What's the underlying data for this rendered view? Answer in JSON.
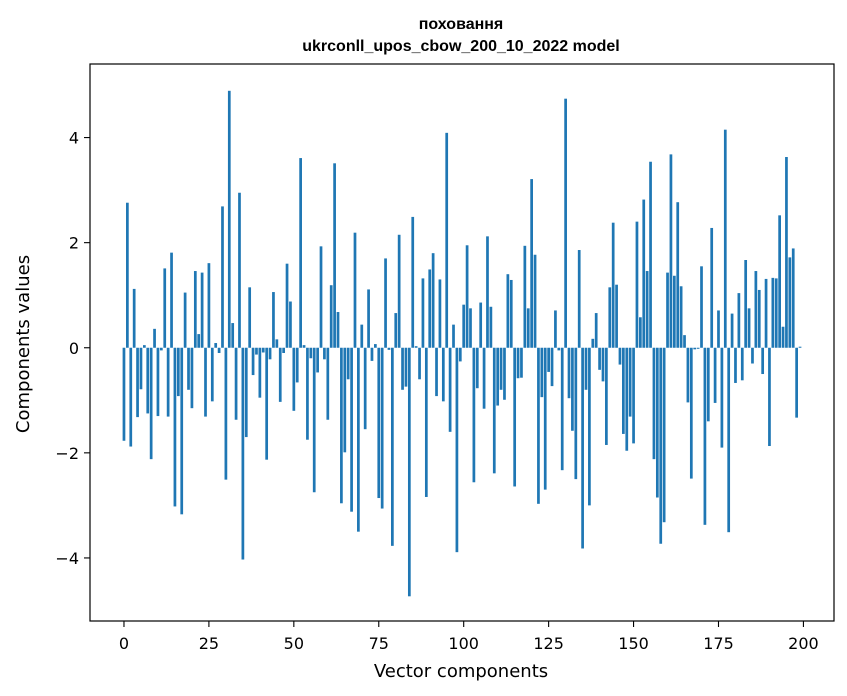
{
  "chart_data": {
    "type": "bar",
    "title": [
      "поховання",
      "ukrconll_upos_cbow_200_10_2022 model"
    ],
    "xlabel": "Vector components",
    "ylabel": "Components values",
    "xlim": [
      -10,
      209
    ],
    "ylim": [
      -5.2,
      5.4
    ],
    "xticks": [
      0,
      25,
      50,
      75,
      100,
      125,
      150,
      175,
      200
    ],
    "yticks": [
      -4,
      -2,
      0,
      2,
      4
    ],
    "grid": false,
    "legend": "none",
    "bar_color": "#1f77b4",
    "x": "0..199",
    "values": [
      -1.77,
      2.76,
      -1.88,
      1.12,
      -1.32,
      -0.79,
      0.05,
      -1.25,
      -2.12,
      0.36,
      -1.3,
      -0.05,
      1.51,
      -1.31,
      1.81,
      -3.02,
      -0.92,
      -3.17,
      1.05,
      -0.8,
      -1.15,
      1.46,
      0.26,
      1.43,
      -1.31,
      1.61,
      -1.02,
      0.09,
      -0.1,
      2.69,
      -2.51,
      4.89,
      0.47,
      -1.37,
      2.95,
      -4.03,
      -1.7,
      1.15,
      -0.52,
      -0.13,
      -0.95,
      -0.09,
      -2.13,
      -0.22,
      1.06,
      0.16,
      -1.03,
      -0.1,
      1.6,
      0.88,
      -1.2,
      -0.66,
      3.61,
      0.05,
      -1.75,
      -0.2,
      -2.75,
      -0.47,
      1.93,
      -0.22,
      -1.37,
      1.19,
      3.51,
      0.68,
      -2.96,
      -1.99,
      -0.6,
      -3.12,
      2.19,
      -3.5,
      0.44,
      -1.55,
      1.11,
      -0.25,
      0.07,
      -2.86,
      -3.06,
      1.7,
      -0.04,
      -3.77,
      0.66,
      2.15,
      -0.8,
      -0.74,
      -4.73,
      2.49,
      0.03,
      -0.6,
      1.32,
      -2.84,
      1.49,
      1.8,
      -0.92,
      1.3,
      -1.02,
      4.09,
      -1.6,
      0.44,
      -3.89,
      -0.26,
      0.82,
      1.95,
      0.75,
      -2.56,
      -0.77,
      0.86,
      -1.16,
      2.12,
      0.78,
      -2.39,
      -1.1,
      -0.8,
      -0.99,
      1.4,
      1.29,
      -2.64,
      -0.58,
      -0.57,
      1.94,
      0.75,
      3.21,
      1.77,
      -2.97,
      -0.94,
      -2.7,
      -0.46,
      -0.73,
      0.71,
      -0.05,
      -2.33,
      4.74,
      -0.96,
      -1.58,
      -2.5,
      1.86,
      -3.82,
      -0.8,
      -3.0,
      0.17,
      0.66,
      -0.42,
      -0.64,
      -1.85,
      1.15,
      2.38,
      1.2,
      -0.32,
      -1.64,
      -1.96,
      -1.31,
      -1.82,
      2.4,
      0.58,
      2.82,
      1.46,
      3.54,
      -2.12,
      -2.85,
      -3.73,
      -3.32,
      1.43,
      3.68,
      1.37,
      2.77,
      1.17,
      0.24,
      -1.04,
      -2.49,
      -0.03,
      -0.02,
      1.55,
      -3.37,
      -1.4,
      2.28,
      -1.05,
      0.71,
      -1.9,
      4.15,
      -3.51,
      0.65,
      -0.67,
      1.04,
      -0.62,
      1.67,
      0.75,
      -0.3,
      1.46,
      1.1,
      -0.5,
      1.31,
      -1.87,
      1.33,
      1.32,
      2.52,
      0.4,
      3.63,
      1.72,
      1.89,
      -1.33,
      0.02
    ]
  }
}
